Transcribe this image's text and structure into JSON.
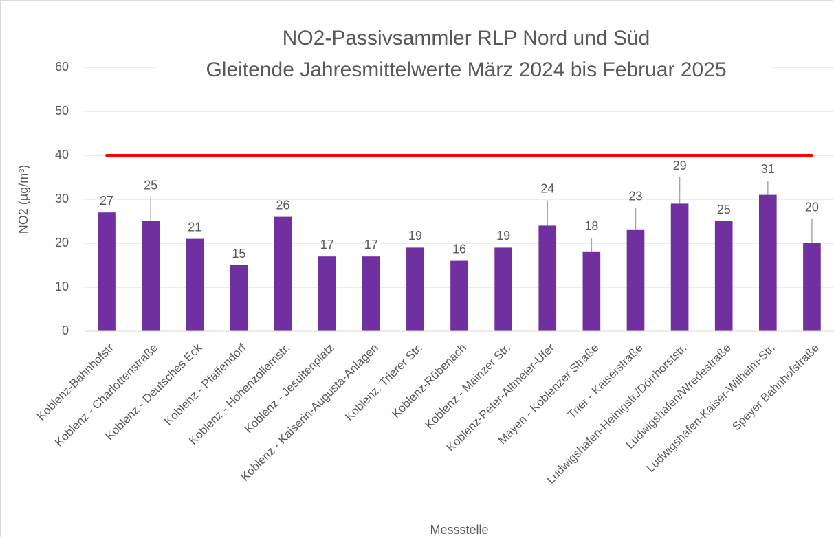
{
  "chart_data": {
    "type": "bar",
    "title": "NO2-Passivsammler RLP Nord und Süd",
    "subtitle": "Gleitende Jahresmittelwerte März 2024 bis Februar 2025",
    "x_label": "Messstelle",
    "y_label": "NO2 (µg/m³)",
    "categories": [
      "Koblenz-Bahnhofstr",
      "Koblenz - Charlottenstraße",
      "Koblenz - Deutsches Eck",
      "Koblenz - Pfaffendorf",
      "Koblenz - Hohenzollernstr.",
      "Koblenz - Jesuitenplatz",
      "Koblenz - Kaiserin-Augusta-Anlagen",
      "Koblenz. Trierer Str.",
      "Koblenz-Rübenach",
      "Koblenz - Mainzer Str.",
      "Koblenz-Peter-Altmeier-Ufer",
      "Mayen - Koblenzer Straße",
      "Trier - Kaiserstraße",
      "Ludwigshafen-Heinigstr./Dörrhorststr.",
      "Ludwigshafen/Wredestraße",
      "Ludwigshafen-Kaiser-Wilhelm-Str.",
      "Speyer Bahnhofstraße"
    ],
    "values": [
      27,
      25,
      21,
      15,
      26,
      17,
      17,
      19,
      16,
      19,
      24,
      18,
      23,
      29,
      25,
      31,
      20
    ],
    "errors": [
      0,
      5.5,
      0,
      0,
      0,
      0,
      0,
      0,
      0,
      0,
      5.7,
      3.2,
      5,
      6,
      0,
      3.2,
      5.5
    ],
    "color": "#7030a0",
    "error_color": "#a6a6a6",
    "threshold": {
      "value": 40,
      "color": "#ff0000"
    },
    "ylim": [
      0,
      60
    ],
    "yticks": [
      0,
      10,
      20,
      30,
      40,
      50,
      60
    ],
    "grid": true
  }
}
